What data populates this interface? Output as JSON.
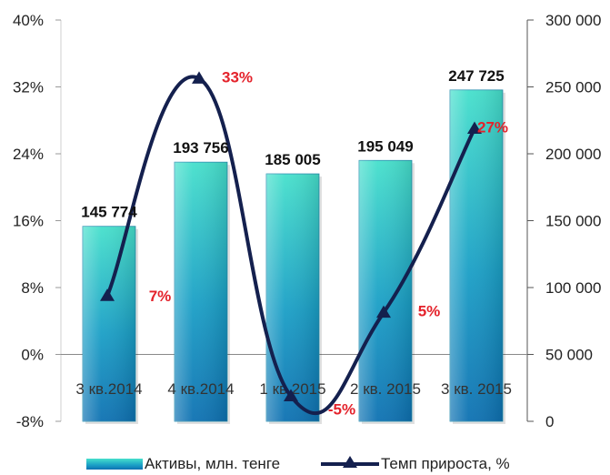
{
  "chart_data": {
    "type": "bar",
    "categories": [
      "3 кв.2014",
      "4 кв.2014",
      "1 кв.2015",
      "2 кв. 2015",
      "3 кв. 2015"
    ],
    "series": [
      {
        "name": "Активы, млн. тенге",
        "type": "bar",
        "axis": "right",
        "values": [
          145774,
          193756,
          185005,
          195049,
          247725
        ],
        "value_labels": [
          "145 774",
          "193 756",
          "185 005",
          "195 049",
          "247 725"
        ]
      },
      {
        "name": "Темп прироста, %",
        "type": "line",
        "axis": "left",
        "values": [
          7,
          33,
          -5,
          5,
          27
        ],
        "value_labels": [
          "7%",
          "33%",
          "-5%",
          "5%",
          "27%"
        ]
      }
    ],
    "left_axis": {
      "min": -8,
      "max": 40,
      "ticks": [
        40,
        32,
        24,
        16,
        8,
        0,
        -8
      ],
      "tick_labels": [
        "40%",
        "32%",
        "24%",
        "16%",
        "8%",
        "0%",
        "-8%"
      ]
    },
    "right_axis": {
      "min": 0,
      "max": 300000,
      "ticks": [
        300000,
        250000,
        200000,
        150000,
        100000,
        50000,
        0
      ],
      "tick_labels": [
        "300 000",
        "250 000",
        "200 000",
        "150 000",
        "100 000",
        "50 000",
        "0"
      ]
    },
    "legend": {
      "position": "bottom",
      "items": [
        "Активы, млн. тенге",
        "Темп прироста, %"
      ]
    },
    "colors": {
      "bar_top": "#46e0cc",
      "bar_bottom": "#0e71b2",
      "line": "#14204e",
      "percent_label": "#e4222b"
    },
    "grid": false
  }
}
